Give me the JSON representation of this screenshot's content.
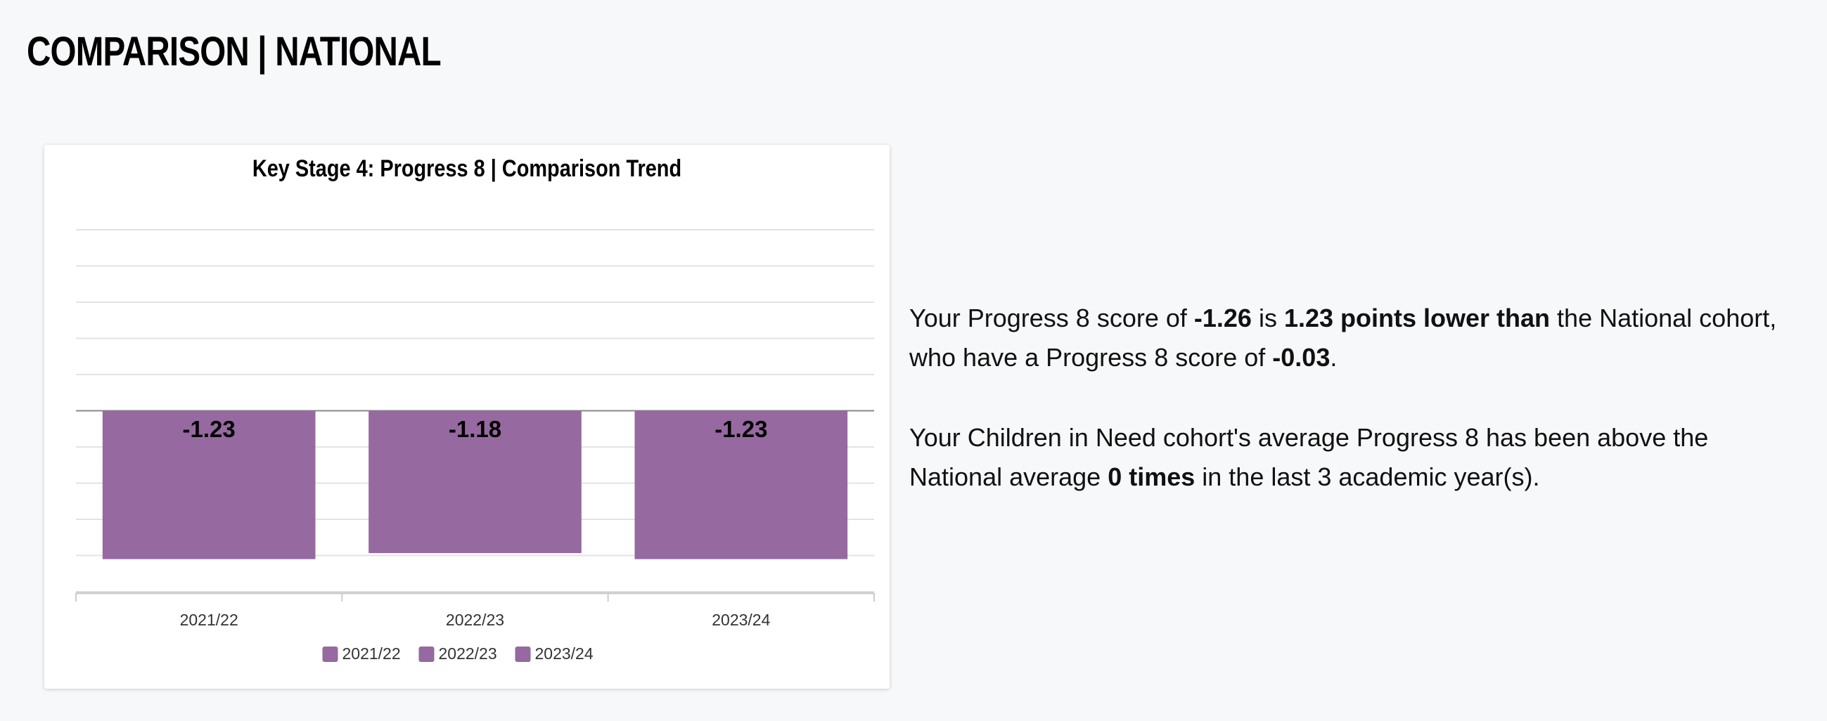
{
  "header": {
    "title": "COMPARISON | NATIONAL"
  },
  "chart_data": {
    "type": "bar",
    "title": "Key Stage 4: Progress 8 | Comparison Trend",
    "categories": [
      "2021/22",
      "2022/23",
      "2023/24"
    ],
    "series": [
      {
        "name": "2021/22",
        "color": "#9669a0",
        "values": [
          -1.23,
          null,
          null
        ]
      },
      {
        "name": "2022/23",
        "color": "#9669a0",
        "values": [
          null,
          -1.18,
          null
        ]
      },
      {
        "name": "2023/24",
        "color": "#9669a0",
        "values": [
          null,
          null,
          -1.23
        ]
      }
    ],
    "ylim": [
      -1.5,
      1.5
    ],
    "yticks": [
      -1.5,
      -1.2,
      -0.9,
      -0.6,
      -0.3,
      0,
      0.3,
      0.6,
      0.9,
      1.2,
      1.5
    ],
    "grid": true,
    "legend": "bottom"
  },
  "summary": {
    "paragraphs": [
      {
        "segments": [
          {
            "text": "Your Progress 8 score of ",
            "bold": false
          },
          {
            "text": "-1.26",
            "bold": true
          },
          {
            "text": " is ",
            "bold": false
          },
          {
            "text": "1.23 points lower than",
            "bold": true
          },
          {
            "text": " the National cohort, who have a Progress 8 score of ",
            "bold": false
          },
          {
            "text": "-0.03",
            "bold": true
          },
          {
            "text": ".",
            "bold": false
          }
        ]
      },
      {
        "segments": [
          {
            "text": "Your Children in Need cohort's average Progress 8 has been above the National average ",
            "bold": false
          },
          {
            "text": "0 times",
            "bold": true
          },
          {
            "text": " in the last 3 academic year(s).",
            "bold": false
          }
        ]
      }
    ]
  }
}
